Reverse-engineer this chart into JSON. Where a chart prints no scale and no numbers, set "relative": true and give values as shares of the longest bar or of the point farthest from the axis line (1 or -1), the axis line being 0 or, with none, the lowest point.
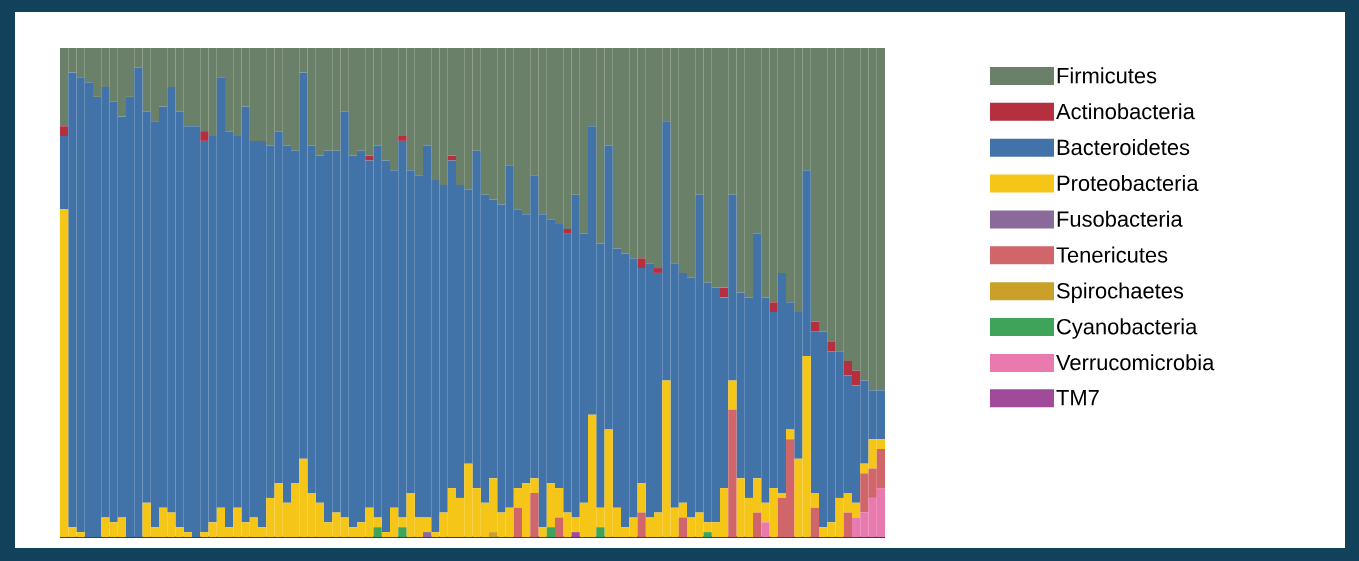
{
  "chart_data": {
    "type": "bar",
    "stacked": true,
    "relative": true,
    "legend": "right",
    "categories": [
      null,
      null,
      null,
      null,
      null,
      null,
      null,
      null,
      null,
      null,
      null,
      null,
      null,
      null,
      null,
      null,
      null,
      null,
      null,
      null,
      null,
      null,
      null,
      null,
      null,
      null,
      null,
      null,
      null,
      null,
      null,
      null,
      null,
      null,
      null,
      null,
      null,
      null,
      null,
      null,
      null,
      null,
      null,
      null,
      null,
      null,
      null,
      null,
      null,
      null,
      null,
      null,
      null,
      null,
      null,
      null,
      null,
      null,
      null,
      null,
      null,
      null,
      null,
      null,
      null,
      null,
      null,
      null,
      null,
      null,
      null,
      null,
      null,
      null,
      null,
      null,
      null,
      null,
      null,
      null,
      null,
      null,
      null,
      null,
      null,
      null,
      null,
      null,
      null,
      null,
      null,
      null,
      null,
      null,
      null,
      null,
      null,
      null,
      null,
      null
    ],
    "series": [
      {
        "name": "TM7",
        "color": "#a04a9a",
        "values": [
          0,
          0,
          0,
          0,
          0,
          0,
          0,
          0,
          0,
          0,
          0,
          0,
          0,
          0,
          0,
          0,
          0,
          0,
          0,
          0,
          0,
          0,
          0,
          0,
          0,
          0,
          0,
          0,
          0,
          0,
          0,
          0,
          0,
          0,
          0,
          0,
          0,
          0,
          0,
          0,
          0,
          0,
          0,
          0,
          0,
          0,
          0,
          0,
          0,
          0,
          0,
          0,
          0,
          0,
          0,
          0,
          0,
          0,
          0,
          0,
          0,
          0,
          0.01,
          0,
          0,
          0,
          0,
          0,
          0,
          0,
          0,
          0,
          0,
          0,
          0,
          0,
          0,
          0,
          0,
          0,
          0,
          0,
          0,
          0,
          0,
          0,
          0,
          0,
          0,
          0,
          0,
          0,
          0,
          0,
          0,
          0,
          0,
          0,
          0,
          0
        ]
      },
      {
        "name": "Verrucomicrobia",
        "color": "#e87ab0",
        "values": [
          0,
          0,
          0,
          0,
          0,
          0,
          0,
          0,
          0,
          0,
          0,
          0,
          0,
          0,
          0,
          0,
          0,
          0,
          0,
          0,
          0,
          0,
          0,
          0,
          0,
          0,
          0,
          0,
          0,
          0,
          0,
          0,
          0,
          0,
          0,
          0,
          0,
          0,
          0,
          0,
          0,
          0,
          0,
          0,
          0,
          0,
          0,
          0,
          0,
          0,
          0,
          0,
          0,
          0,
          0,
          0,
          0,
          0,
          0,
          0,
          0,
          0,
          0,
          0,
          0,
          0,
          0,
          0,
          0,
          0,
          0,
          0,
          0,
          0,
          0,
          0,
          0,
          0,
          0,
          0,
          0,
          0,
          0,
          0,
          0,
          0.03,
          0,
          0,
          0,
          0,
          0,
          0,
          0,
          0,
          0,
          0,
          0.04,
          0.05,
          0.08,
          0.1
        ]
      },
      {
        "name": "Cyanobacteria",
        "color": "#3fa35a",
        "values": [
          0,
          0,
          0,
          0,
          0,
          0,
          0,
          0,
          0,
          0,
          0,
          0,
          0,
          0,
          0,
          0,
          0,
          0,
          0,
          0,
          0,
          0,
          0,
          0,
          0,
          0,
          0,
          0,
          0,
          0,
          0,
          0,
          0,
          0,
          0,
          0,
          0,
          0,
          0.02,
          0,
          0,
          0.02,
          0,
          0,
          0,
          0,
          0,
          0,
          0,
          0,
          0,
          0,
          0,
          0,
          0,
          0,
          0,
          0,
          0,
          0.02,
          0,
          0,
          0,
          0,
          0,
          0.02,
          0,
          0,
          0,
          0,
          0,
          0,
          0,
          0,
          0,
          0,
          0,
          0,
          0.01,
          0,
          0,
          0,
          0,
          0,
          0,
          0,
          0,
          0,
          0,
          0,
          0,
          0,
          0,
          0,
          0,
          0,
          0,
          0,
          0,
          0
        ]
      },
      {
        "name": "Spirochaetes",
        "color": "#c9a02a",
        "values": [
          0,
          0,
          0,
          0,
          0,
          0,
          0,
          0,
          0,
          0,
          0,
          0,
          0,
          0,
          0,
          0,
          0,
          0,
          0,
          0,
          0,
          0,
          0,
          0,
          0,
          0,
          0,
          0,
          0,
          0,
          0,
          0,
          0,
          0,
          0,
          0,
          0,
          0,
          0,
          0,
          0,
          0,
          0,
          0,
          0,
          0,
          0,
          0,
          0,
          0,
          0,
          0,
          0.01,
          0,
          0,
          0,
          0,
          0,
          0,
          0,
          0,
          0,
          0,
          0,
          0,
          0,
          0,
          0,
          0,
          0,
          0,
          0,
          0,
          0,
          0,
          0,
          0,
          0,
          0,
          0,
          0,
          0,
          0,
          0,
          0,
          0,
          0,
          0,
          0,
          0,
          0,
          0,
          0,
          0,
          0,
          0,
          0,
          0,
          0,
          0
        ]
      },
      {
        "name": "Tenericutes",
        "color": "#d0666a",
        "values": [
          0,
          0,
          0,
          0,
          0,
          0,
          0,
          0,
          0,
          0,
          0,
          0,
          0,
          0,
          0,
          0,
          0,
          0,
          0,
          0,
          0,
          0,
          0,
          0,
          0,
          0,
          0,
          0,
          0,
          0,
          0,
          0,
          0,
          0,
          0,
          0,
          0,
          0,
          0,
          0,
          0,
          0,
          0,
          0,
          0,
          0,
          0,
          0,
          0,
          0,
          0,
          0,
          0,
          0,
          0,
          0.06,
          0,
          0.09,
          0,
          0,
          0.04,
          0,
          0,
          0,
          0,
          0,
          0,
          0,
          0,
          0,
          0.05,
          0,
          0,
          0,
          0,
          0.04,
          0,
          0,
          0,
          0,
          0,
          0.26,
          0,
          0,
          0.05,
          0,
          0,
          0.08,
          0.2,
          0,
          0,
          0.06,
          0,
          0,
          0,
          0.05,
          0,
          0.08,
          0.06,
          0.08
        ]
      },
      {
        "name": "Fusobacteria",
        "color": "#8a6a9a",
        "values": [
          0,
          0,
          0,
          0,
          0,
          0,
          0,
          0,
          0,
          0,
          0,
          0,
          0,
          0,
          0,
          0,
          0,
          0,
          0,
          0,
          0,
          0,
          0,
          0,
          0,
          0,
          0,
          0,
          0,
          0,
          0,
          0,
          0,
          0,
          0,
          0,
          0,
          0,
          0,
          0,
          0,
          0,
          0,
          0,
          0.01,
          0,
          0,
          0,
          0,
          0,
          0,
          0,
          0,
          0,
          0,
          0,
          0,
          0,
          0,
          0,
          0,
          0,
          0,
          0,
          0,
          0,
          0,
          0,
          0,
          0,
          0,
          0,
          0,
          0,
          0,
          0,
          0,
          0,
          0,
          0,
          0,
          0,
          0,
          0,
          0,
          0,
          0,
          0,
          0,
          0,
          0,
          0,
          0,
          0,
          0,
          0,
          0,
          0,
          0,
          0
        ]
      },
      {
        "name": "Proteobacteria",
        "color": "#f5c518",
        "values": [
          0.67,
          0.02,
          0.01,
          0,
          0,
          0.04,
          0.03,
          0.04,
          0,
          0,
          0.07,
          0.02,
          0.06,
          0.05,
          0.02,
          0.01,
          0,
          0.01,
          0.03,
          0.06,
          0.02,
          0.06,
          0.03,
          0.04,
          0.02,
          0.08,
          0.11,
          0.07,
          0.11,
          0.16,
          0.09,
          0.07,
          0.03,
          0.05,
          0.04,
          0.02,
          0.03,
          0.06,
          0.02,
          0.01,
          0.06,
          0.02,
          0.09,
          0.04,
          0.03,
          0.01,
          0.05,
          0.1,
          0.08,
          0.15,
          0.1,
          0.07,
          0.11,
          0.05,
          0.06,
          0.04,
          0.11,
          0.03,
          0.02,
          0.09,
          0.06,
          0.05,
          0.03,
          0.07,
          0.25,
          0.04,
          0.22,
          0.06,
          0.02,
          0.04,
          0.06,
          0.04,
          0.05,
          0.32,
          0.06,
          0.03,
          0.04,
          0.05,
          0.02,
          0.03,
          0.1,
          0.06,
          0.12,
          0.08,
          0.07,
          0.04,
          0.1,
          0.01,
          0.02,
          0.16,
          0.37,
          0.03,
          0.02,
          0.03,
          0.08,
          0.04,
          0.03,
          0.02,
          0.06,
          0.02
        ]
      },
      {
        "name": "Bacteroidetes",
        "color": "#4173a8",
        "values": [
          0.15,
          0.93,
          0.93,
          0.93,
          0.9,
          0.88,
          0.86,
          0.82,
          0.9,
          0.96,
          0.8,
          0.83,
          0.82,
          0.87,
          0.85,
          0.83,
          0.84,
          0.8,
          0.79,
          0.88,
          0.81,
          0.76,
          0.85,
          0.77,
          0.79,
          0.72,
          0.72,
          0.73,
          0.68,
          0.79,
          0.71,
          0.71,
          0.76,
          0.74,
          0.83,
          0.76,
          0.76,
          0.71,
          0.76,
          0.76,
          0.69,
          0.77,
          0.66,
          0.7,
          0.76,
          0.72,
          0.67,
          0.67,
          0.64,
          0.56,
          0.69,
          0.63,
          0.57,
          0.63,
          0.7,
          0.57,
          0.55,
          0.62,
          0.64,
          0.54,
          0.54,
          0.57,
          0.66,
          0.55,
          0.59,
          0.54,
          0.58,
          0.53,
          0.56,
          0.53,
          0.44,
          0.52,
          0.49,
          0.53,
          0.5,
          0.47,
          0.49,
          0.65,
          0.49,
          0.48,
          0.39,
          0.38,
          0.38,
          0.41,
          0.5,
          0.42,
          0.36,
          0.45,
          0.26,
          0.3,
          0.38,
          0.33,
          0.4,
          0.35,
          0.3,
          0.24,
          0.24,
          0.17,
          0.1,
          0.1
        ]
      },
      {
        "name": "Actinobacteria",
        "color": "#b5303f",
        "values": [
          0.02,
          0,
          0,
          0,
          0,
          0,
          0,
          0,
          0,
          0,
          0,
          0,
          0,
          0,
          0,
          0,
          0,
          0.02,
          0,
          0,
          0,
          0,
          0,
          0,
          0,
          0,
          0,
          0,
          0,
          0,
          0,
          0,
          0,
          0,
          0,
          0,
          0,
          0.01,
          0,
          0,
          0,
          0.01,
          0,
          0,
          0,
          0,
          0,
          0.01,
          0,
          0,
          0,
          0,
          0,
          0,
          0,
          0,
          0,
          0,
          0,
          0,
          0,
          0.01,
          0,
          0,
          0,
          0,
          0,
          0,
          0,
          0,
          0.02,
          0,
          0.01,
          0,
          0,
          0,
          0,
          0,
          0,
          0,
          0.02,
          0,
          0,
          0,
          0,
          0,
          0.02,
          0,
          0,
          0,
          0,
          0.02,
          0,
          0.02,
          0,
          0.03,
          0.03,
          0,
          0,
          0
        ]
      },
      {
        "name": "Firmicutes",
        "color": "#6b8068",
        "values": [
          0.16,
          0.05,
          0.06,
          0.07,
          0.1,
          0.08,
          0.11,
          0.14,
          0.1,
          0.04,
          0.13,
          0.15,
          0.12,
          0.08,
          0.13,
          0.16,
          0.16,
          0.17,
          0.18,
          0.06,
          0.17,
          0.18,
          0.12,
          0.19,
          0.19,
          0.2,
          0.17,
          0.2,
          0.21,
          0.05,
          0.2,
          0.22,
          0.21,
          0.21,
          0.13,
          0.22,
          0.21,
          0.22,
          0.2,
          0.23,
          0.25,
          0.18,
          0.25,
          0.26,
          0.2,
          0.27,
          0.28,
          0.22,
          0.28,
          0.29,
          0.21,
          0.3,
          0.31,
          0.32,
          0.24,
          0.33,
          0.34,
          0.26,
          0.34,
          0.35,
          0.36,
          0.37,
          0.3,
          0.38,
          0.16,
          0.4,
          0.2,
          0.41,
          0.42,
          0.43,
          0.43,
          0.44,
          0.45,
          0.15,
          0.44,
          0.46,
          0.47,
          0.3,
          0.48,
          0.49,
          0.49,
          0.3,
          0.5,
          0.51,
          0.38,
          0.51,
          0.52,
          0.46,
          0.52,
          0.54,
          0.25,
          0.56,
          0.58,
          0.6,
          0.62,
          0.64,
          0.66,
          0.68,
          0.7,
          0.7
        ]
      }
    ]
  }
}
